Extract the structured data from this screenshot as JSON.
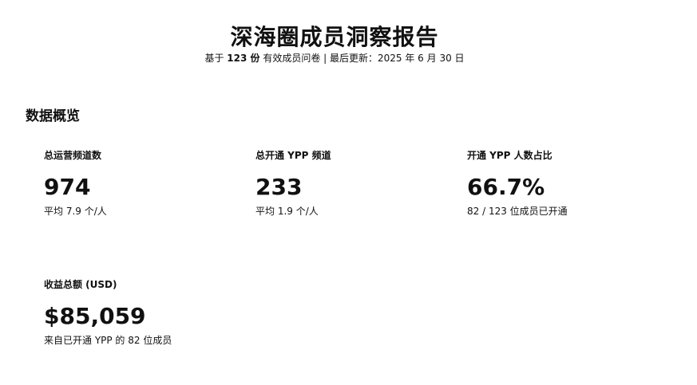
{
  "header": {
    "title": "深海圈成员洞察报告",
    "subtitle_prefix": "基于",
    "subtitle_count": "123 份",
    "subtitle_suffix": "有效成员问卷 | 最后更新：2025 年 6 月 30 日"
  },
  "overview": {
    "section_title": "数据概览",
    "cards": [
      {
        "label": "总运营频道数",
        "value": "974",
        "note": "平均 7.9 个/人"
      },
      {
        "label": "总开通 YPP 频道",
        "value": "233",
        "note": "平均 1.9 个/人"
      },
      {
        "label": "开通 YPP 人数占比",
        "value": "66.7%",
        "note": "82 / 123 位成员已开通"
      },
      {
        "label": "收益总额 (USD)",
        "value": "$85,059",
        "note": "来自已开通 YPP 的 82 位成员"
      }
    ]
  }
}
